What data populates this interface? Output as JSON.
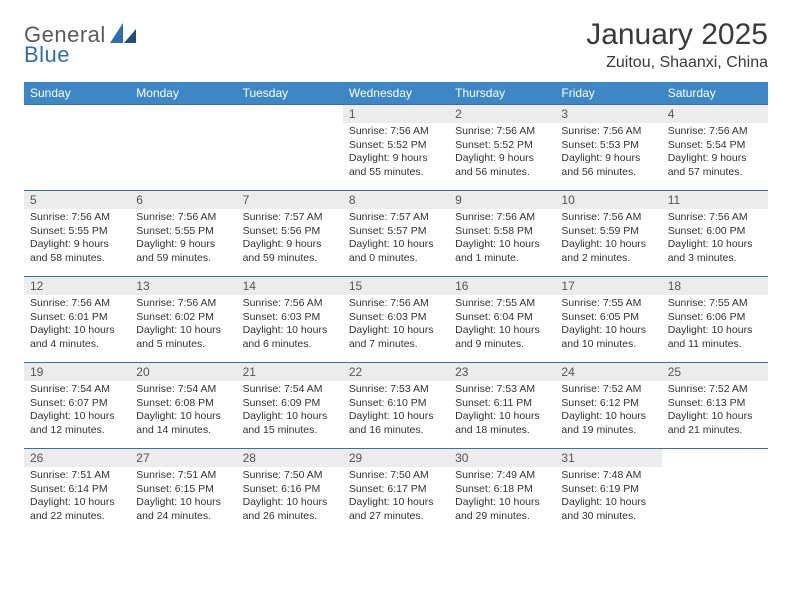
{
  "brand": {
    "general": "General",
    "blue": "Blue"
  },
  "title": "January 2025",
  "location": "Zuitou, Shaanxi, China",
  "colors": {
    "header_bg": "#3d87c7",
    "header_text": "#ffffff",
    "row_divider": "#3d6fa3",
    "daynum_bg": "#ececec",
    "body_text": "#333333",
    "logo_gray": "#5a5a5a",
    "logo_blue": "#2f6fad",
    "page_bg": "#ffffff"
  },
  "weekdays": [
    "Sunday",
    "Monday",
    "Tuesday",
    "Wednesday",
    "Thursday",
    "Friday",
    "Saturday"
  ],
  "weeks": [
    [
      null,
      null,
      null,
      {
        "n": "1",
        "sunrise": "7:56 AM",
        "sunset": "5:52 PM",
        "daylight": "9 hours and 55 minutes."
      },
      {
        "n": "2",
        "sunrise": "7:56 AM",
        "sunset": "5:52 PM",
        "daylight": "9 hours and 56 minutes."
      },
      {
        "n": "3",
        "sunrise": "7:56 AM",
        "sunset": "5:53 PM",
        "daylight": "9 hours and 56 minutes."
      },
      {
        "n": "4",
        "sunrise": "7:56 AM",
        "sunset": "5:54 PM",
        "daylight": "9 hours and 57 minutes."
      }
    ],
    [
      {
        "n": "5",
        "sunrise": "7:56 AM",
        "sunset": "5:55 PM",
        "daylight": "9 hours and 58 minutes."
      },
      {
        "n": "6",
        "sunrise": "7:56 AM",
        "sunset": "5:55 PM",
        "daylight": "9 hours and 59 minutes."
      },
      {
        "n": "7",
        "sunrise": "7:57 AM",
        "sunset": "5:56 PM",
        "daylight": "9 hours and 59 minutes."
      },
      {
        "n": "8",
        "sunrise": "7:57 AM",
        "sunset": "5:57 PM",
        "daylight": "10 hours and 0 minutes."
      },
      {
        "n": "9",
        "sunrise": "7:56 AM",
        "sunset": "5:58 PM",
        "daylight": "10 hours and 1 minute."
      },
      {
        "n": "10",
        "sunrise": "7:56 AM",
        "sunset": "5:59 PM",
        "daylight": "10 hours and 2 minutes."
      },
      {
        "n": "11",
        "sunrise": "7:56 AM",
        "sunset": "6:00 PM",
        "daylight": "10 hours and 3 minutes."
      }
    ],
    [
      {
        "n": "12",
        "sunrise": "7:56 AM",
        "sunset": "6:01 PM",
        "daylight": "10 hours and 4 minutes."
      },
      {
        "n": "13",
        "sunrise": "7:56 AM",
        "sunset": "6:02 PM",
        "daylight": "10 hours and 5 minutes."
      },
      {
        "n": "14",
        "sunrise": "7:56 AM",
        "sunset": "6:03 PM",
        "daylight": "10 hours and 6 minutes."
      },
      {
        "n": "15",
        "sunrise": "7:56 AM",
        "sunset": "6:03 PM",
        "daylight": "10 hours and 7 minutes."
      },
      {
        "n": "16",
        "sunrise": "7:55 AM",
        "sunset": "6:04 PM",
        "daylight": "10 hours and 9 minutes."
      },
      {
        "n": "17",
        "sunrise": "7:55 AM",
        "sunset": "6:05 PM",
        "daylight": "10 hours and 10 minutes."
      },
      {
        "n": "18",
        "sunrise": "7:55 AM",
        "sunset": "6:06 PM",
        "daylight": "10 hours and 11 minutes."
      }
    ],
    [
      {
        "n": "19",
        "sunrise": "7:54 AM",
        "sunset": "6:07 PM",
        "daylight": "10 hours and 12 minutes."
      },
      {
        "n": "20",
        "sunrise": "7:54 AM",
        "sunset": "6:08 PM",
        "daylight": "10 hours and 14 minutes."
      },
      {
        "n": "21",
        "sunrise": "7:54 AM",
        "sunset": "6:09 PM",
        "daylight": "10 hours and 15 minutes."
      },
      {
        "n": "22",
        "sunrise": "7:53 AM",
        "sunset": "6:10 PM",
        "daylight": "10 hours and 16 minutes."
      },
      {
        "n": "23",
        "sunrise": "7:53 AM",
        "sunset": "6:11 PM",
        "daylight": "10 hours and 18 minutes."
      },
      {
        "n": "24",
        "sunrise": "7:52 AM",
        "sunset": "6:12 PM",
        "daylight": "10 hours and 19 minutes."
      },
      {
        "n": "25",
        "sunrise": "7:52 AM",
        "sunset": "6:13 PM",
        "daylight": "10 hours and 21 minutes."
      }
    ],
    [
      {
        "n": "26",
        "sunrise": "7:51 AM",
        "sunset": "6:14 PM",
        "daylight": "10 hours and 22 minutes."
      },
      {
        "n": "27",
        "sunrise": "7:51 AM",
        "sunset": "6:15 PM",
        "daylight": "10 hours and 24 minutes."
      },
      {
        "n": "28",
        "sunrise": "7:50 AM",
        "sunset": "6:16 PM",
        "daylight": "10 hours and 26 minutes."
      },
      {
        "n": "29",
        "sunrise": "7:50 AM",
        "sunset": "6:17 PM",
        "daylight": "10 hours and 27 minutes."
      },
      {
        "n": "30",
        "sunrise": "7:49 AM",
        "sunset": "6:18 PM",
        "daylight": "10 hours and 29 minutes."
      },
      {
        "n": "31",
        "sunrise": "7:48 AM",
        "sunset": "6:19 PM",
        "daylight": "10 hours and 30 minutes."
      },
      null
    ]
  ],
  "labels": {
    "sunrise": "Sunrise: ",
    "sunset": "Sunset: ",
    "daylight": "Daylight: "
  }
}
